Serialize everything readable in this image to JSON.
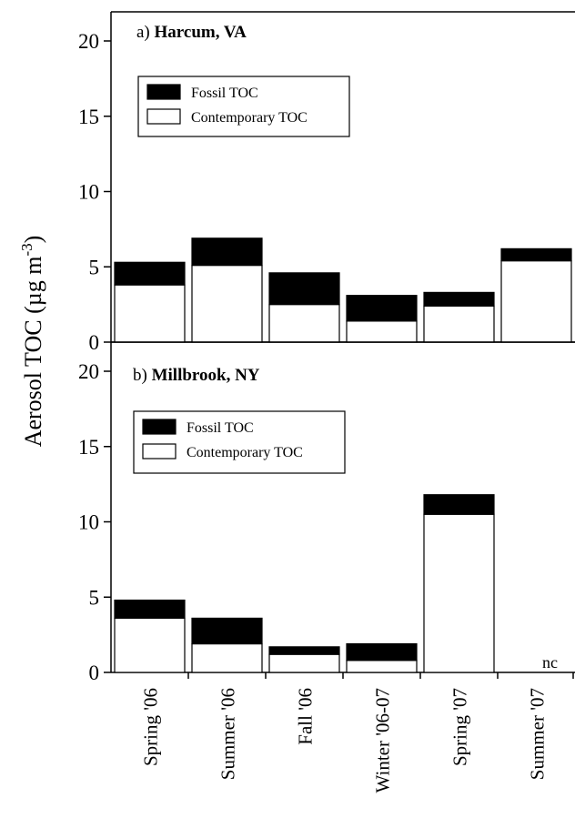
{
  "chart_data": [
    {
      "type": "bar",
      "stacked": true,
      "panel_prefix": "a)",
      "site": "Harcum, VA",
      "categories": [
        "Spring '06",
        "Summer '06",
        "Fall '06",
        "Winter '06-07",
        "Spring '07",
        "Summer '07"
      ],
      "series": [
        {
          "name": "Contemporary TOC",
          "color": "#ffffff",
          "values": [
            3.8,
            5.1,
            2.5,
            1.4,
            2.4,
            5.4
          ]
        },
        {
          "name": "Fossil TOC",
          "color": "#000000",
          "values": [
            1.5,
            1.8,
            2.1,
            1.7,
            0.9,
            0.8
          ]
        }
      ],
      "ylim": [
        0,
        22
      ],
      "yticks": [
        0,
        5,
        10,
        15,
        20
      ],
      "legend": "upper-left",
      "grid": false
    },
    {
      "type": "bar",
      "stacked": true,
      "panel_prefix": "b)",
      "site": "Millbrook, NY",
      "categories": [
        "Spring '06",
        "Summer '06",
        "Fall '06",
        "Winter '06-07",
        "Spring '07",
        "Summer '07"
      ],
      "series": [
        {
          "name": "Contemporary TOC",
          "color": "#ffffff",
          "values": [
            3.6,
            1.9,
            1.2,
            0.8,
            10.5,
            null
          ]
        },
        {
          "name": "Fossil TOC",
          "color": "#000000",
          "values": [
            1.2,
            1.7,
            0.5,
            1.1,
            1.3,
            null
          ]
        }
      ],
      "annotations": [
        {
          "category": "Summer '07",
          "text": "nc"
        }
      ],
      "ylim": [
        0,
        22
      ],
      "yticks": [
        0,
        5,
        10,
        15,
        20
      ],
      "legend": "upper-left",
      "grid": false
    }
  ],
  "ylabel_main": "Aerosol TOC  (µg m",
  "ylabel_sup": "-3",
  "ylabel_close": ")"
}
